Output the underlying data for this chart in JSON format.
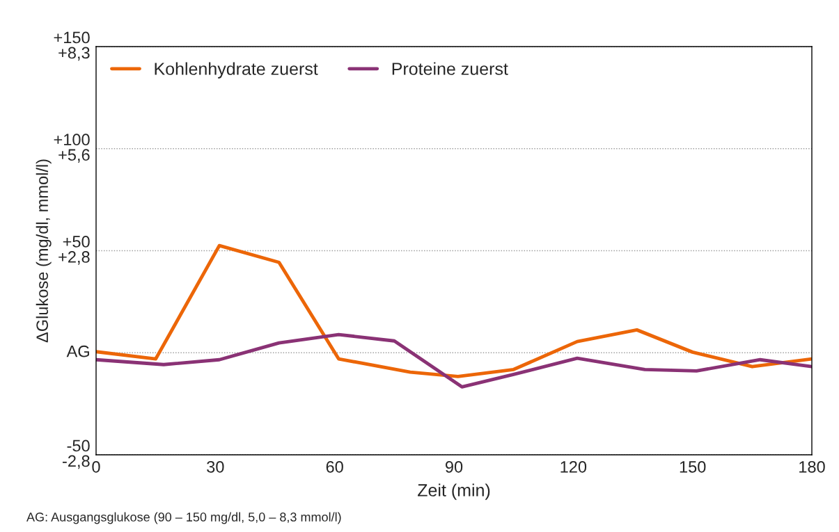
{
  "chart_data": {
    "type": "line",
    "xlabel": "Zeit (min)",
    "ylabel": "ΔGlukose (mg/dl, mmol/l)",
    "xlim": [
      0,
      180
    ],
    "xticks": [
      0,
      30,
      60,
      90,
      120,
      150,
      180
    ],
    "ylim": [
      -50,
      150
    ],
    "yticks": [
      -50,
      {
        "value": 0,
        "label": "AG"
      },
      {
        "value": 50,
        "label": "+50"
      },
      {
        "value": 100,
        "label": "+100"
      },
      {
        "value": 150,
        "label": "+150"
      }
    ],
    "y2lim": [
      -2.775,
      8.325
    ],
    "y2ticks": [
      {
        "value": -2.775,
        "label": "-2,8"
      },
      {
        "value": 2.775,
        "label": "+2,8"
      },
      {
        "value": 5.55,
        "label": "+5,6"
      },
      {
        "value": 8.325,
        "label": "+8,3"
      }
    ],
    "grid": "y",
    "legend": "top left",
    "marker": "none",
    "line_style": "solid",
    "series": [
      {
        "name": "Kohlenhydrate zuerst",
        "color": "#ec6608",
        "x": [
          0,
          15,
          31,
          46,
          61,
          79,
          91,
          105,
          121,
          136,
          150,
          165,
          180
        ],
        "values": [
          0.5,
          -3,
          52.5,
          44.3,
          -3,
          -9.5,
          -11.6,
          -8.2,
          5.5,
          11.2,
          0.3,
          -6.8,
          -3
        ]
      },
      {
        "name": "Proteine zuerst",
        "color": "#8a3275",
        "x": [
          0,
          17,
          31,
          46,
          61,
          75,
          92,
          105,
          121,
          138,
          151,
          167,
          180
        ],
        "values": [
          -3.4,
          -5.8,
          -3.4,
          4.8,
          8.9,
          5.8,
          -16.7,
          -10.6,
          -2.7,
          -8.2,
          -8.9,
          -3.4,
          -6.8
        ]
      }
    ],
    "annotations": [
      "AG: Ausgangsglukose (90 – 150 mg/dl, 5,0 – 8,3 mmol/l)"
    ]
  }
}
